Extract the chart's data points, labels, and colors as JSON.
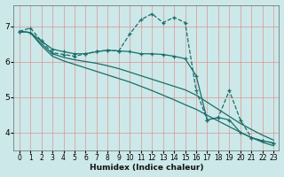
{
  "xlabel": "Humidex (Indice chaleur)",
  "bg_color": "#cce8e8",
  "grid_color": "#e08080",
  "line_color": "#1a6e6a",
  "xlim": [
    -0.5,
    23.5
  ],
  "ylim": [
    3.5,
    7.6
  ],
  "xticks": [
    0,
    1,
    2,
    3,
    4,
    5,
    6,
    7,
    8,
    9,
    10,
    11,
    12,
    13,
    14,
    15,
    16,
    17,
    18,
    19,
    20,
    21,
    22,
    23
  ],
  "yticks": [
    4,
    5,
    6,
    7
  ],
  "line1_x": [
    0,
    1,
    2,
    3,
    4,
    5,
    6,
    7,
    8,
    9,
    10,
    11,
    12,
    13,
    14,
    15,
    16,
    17,
    18,
    19,
    20,
    21,
    22,
    23
  ],
  "line1_y": [
    6.85,
    6.95,
    6.58,
    6.25,
    6.2,
    6.15,
    6.22,
    6.28,
    6.32,
    6.3,
    6.78,
    7.18,
    7.35,
    7.1,
    7.25,
    7.1,
    5.18,
    4.35,
    4.42,
    5.18,
    4.35,
    3.85,
    3.76,
    3.7
  ],
  "line2_x": [
    0,
    1,
    2,
    3,
    4,
    5,
    6,
    7,
    8,
    9,
    10,
    11,
    12,
    13,
    14,
    15,
    16,
    17,
    18,
    19,
    20,
    21,
    22,
    23
  ],
  "line2_y": [
    6.85,
    6.82,
    6.58,
    6.35,
    6.28,
    6.22,
    6.22,
    6.28,
    6.32,
    6.3,
    6.28,
    6.22,
    6.22,
    6.2,
    6.15,
    6.08,
    5.6,
    4.35,
    4.42,
    4.35,
    4.0,
    3.85,
    3.76,
    3.7
  ],
  "line3_x": [
    0,
    1,
    2,
    3,
    4,
    5,
    6,
    7,
    8,
    9,
    10,
    11,
    12,
    13,
    14,
    15,
    16,
    17,
    18,
    19,
    20,
    21,
    22,
    23
  ],
  "line3_y": [
    6.85,
    6.82,
    6.5,
    6.22,
    6.12,
    6.05,
    6.0,
    5.95,
    5.88,
    5.8,
    5.7,
    5.6,
    5.5,
    5.4,
    5.3,
    5.2,
    5.05,
    4.85,
    4.65,
    4.45,
    4.25,
    4.08,
    3.92,
    3.78
  ],
  "line4_x": [
    0,
    1,
    2,
    3,
    4,
    5,
    6,
    7,
    8,
    9,
    10,
    11,
    12,
    13,
    14,
    15,
    16,
    17,
    18,
    19,
    20,
    21,
    22,
    23
  ],
  "line4_y": [
    6.85,
    6.82,
    6.45,
    6.15,
    6.02,
    5.92,
    5.82,
    5.72,
    5.62,
    5.52,
    5.42,
    5.3,
    5.18,
    5.05,
    4.92,
    4.78,
    4.65,
    4.48,
    4.32,
    4.16,
    4.0,
    3.85,
    3.72,
    3.62
  ]
}
